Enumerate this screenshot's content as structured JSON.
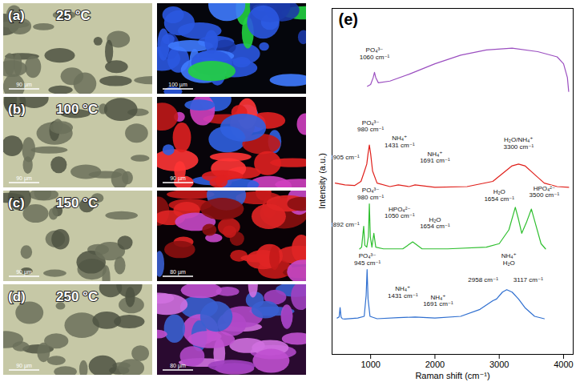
{
  "panels": [
    {
      "label": "(a)",
      "temperature": "25 °C",
      "scale_bars": [
        "90 µm",
        "100 µm"
      ]
    },
    {
      "label": "(b)",
      "temperature": "100 °C",
      "scale_bars": [
        "90 µm",
        "90 µm"
      ]
    },
    {
      "label": "(c)",
      "temperature": "150 °C",
      "scale_bars": [
        "90 µm",
        "80 µm"
      ]
    },
    {
      "label": "(d)",
      "temperature": "250 °C",
      "scale_bars": [
        "90 µm",
        "80 µm"
      ]
    }
  ],
  "chart_data": {
    "type": "line",
    "panel_label": "(e)",
    "x_label": "Raman shift (cm⁻¹)",
    "y_label": "Intensity (a.u.)",
    "xlim": [
      400,
      4150
    ],
    "xticks": [
      1000,
      2000,
      3000,
      4000
    ],
    "ylim": [
      0,
      100
    ],
    "yticks": [],
    "tick_labels": "x",
    "series": [
      {
        "color": "#9b4fc0",
        "x": [
          950,
          1000,
          1040,
          1060,
          1080,
          1120,
          1300,
          1600,
          2000,
          2400,
          2800,
          3200,
          3600,
          3900,
          4000,
          4060,
          4080
        ],
        "values": [
          77.5,
          78,
          80,
          81.5,
          80,
          78.5,
          79,
          81,
          84,
          86.5,
          88,
          88.5,
          87.5,
          86,
          84,
          80,
          76
        ]
      },
      {
        "color": "#e0201b",
        "x": [
          450,
          600,
          750,
          850,
          905,
          940,
          960,
          980,
          1000,
          1030,
          1100,
          1300,
          1431,
          1600,
          1691,
          2000,
          2500,
          2900,
          3100,
          3200,
          3300,
          3400,
          3550,
          3700,
          3900,
          4080
        ],
        "values": [
          49.5,
          49,
          48.8,
          50,
          53,
          55,
          58,
          60.5,
          58,
          53,
          49.5,
          48.5,
          49,
          48.5,
          49,
          48.3,
          48.5,
          50,
          53,
          54.5,
          55,
          54.5,
          52,
          49.5,
          48.5,
          48.3
        ]
      },
      {
        "color": "#2fbf2f",
        "x": [
          830,
          860,
          892,
          910,
          940,
          965,
          980,
          995,
          1020,
          1050,
          1080,
          1200,
          1500,
          1654,
          1800,
          2200,
          2800,
          3000,
          3150,
          3250,
          3300,
          3350,
          3420,
          3500,
          3560,
          3650,
          3720
        ],
        "values": [
          30.5,
          31,
          37,
          31.5,
          31,
          34,
          43.5,
          34,
          31,
          35,
          31,
          30.5,
          30.5,
          32.5,
          30.5,
          30.5,
          31,
          32,
          36,
          42.5,
          39,
          35,
          38,
          42,
          38,
          32,
          30.5
        ]
      },
      {
        "color": "#2f6fd0",
        "x": [
          480,
          510,
          525,
          540,
          560,
          600,
          800,
          900,
          930,
          945,
          960,
          990,
          1100,
          1431,
          1691,
          2000,
          2400,
          2700,
          2900,
          2958,
          3050,
          3117,
          3200,
          3300,
          3400,
          3550,
          3700
        ],
        "values": [
          10.5,
          10.8,
          13.5,
          10.8,
          10.3,
          10.2,
          10.5,
          11,
          17,
          24.5,
          16,
          11,
          10.3,
          10.6,
          10.8,
          10.5,
          11,
          13,
          15.5,
          16,
          18,
          18.7,
          18,
          16,
          13.5,
          11,
          10.3
        ]
      }
    ],
    "annotations": [
      {
        "text": "PO₄³⁻\n1060 cm⁻¹",
        "x": 1060,
        "y": 87
      },
      {
        "text": "905 cm⁻¹",
        "x": 620,
        "y": 57
      },
      {
        "text": "PO₄³⁻\n980 cm⁻¹",
        "x": 1000,
        "y": 66
      },
      {
        "text": "NH₄⁺\n1431 cm⁻¹",
        "x": 1450,
        "y": 61.5
      },
      {
        "text": "NH₄⁺\n1691 cm⁻¹",
        "x": 2000,
        "y": 57
      },
      {
        "text": "H₂O/NH₄⁺\n3300 cm⁻¹",
        "x": 3300,
        "y": 61
      },
      {
        "text": "892 cm⁻¹",
        "x": 620,
        "y": 37.5
      },
      {
        "text": "PO₄³⁻\n980 cm⁻¹",
        "x": 1000,
        "y": 46.5
      },
      {
        "text": "HPO₄²⁻\n1050 cm⁻¹",
        "x": 1450,
        "y": 41
      },
      {
        "text": "H₂O\n1654 cm⁻¹",
        "x": 2000,
        "y": 38
      },
      {
        "text": "H₂O\n1654 cm⁻¹",
        "x": 3000,
        "y": 46
      },
      {
        "text": "HPO₄²⁻\n3500 cm⁻¹",
        "x": 3700,
        "y": 47
      },
      {
        "text": "PO₄³⁻\n945 cm⁻¹",
        "x": 950,
        "y": 27.5
      },
      {
        "text": "NH₄⁺\n1431 cm⁻¹",
        "x": 1500,
        "y": 18
      },
      {
        "text": "NH₄⁺\n1691 cm⁻¹",
        "x": 2050,
        "y": 15.5
      },
      {
        "text": "NH₄⁺\nH₂O",
        "x": 3150,
        "y": 27.5
      },
      {
        "text": "2958 cm⁻¹",
        "x": 2750,
        "y": 21.5
      },
      {
        "text": "3117 cm⁻¹",
        "x": 3450,
        "y": 21.5
      }
    ]
  }
}
